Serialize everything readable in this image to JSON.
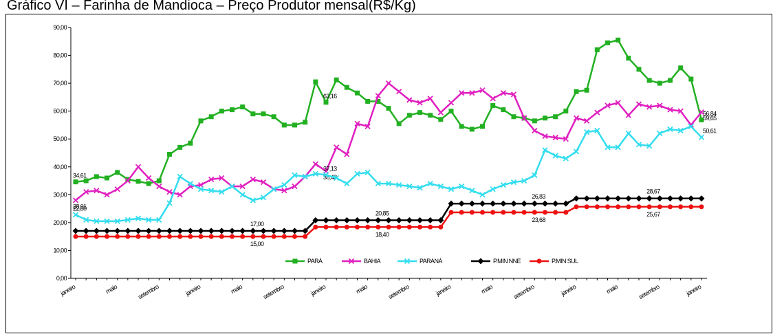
{
  "chart_data": {
    "type": "line",
    "title": "Gráfico VI – Farinha de Mandioca – Preço Produtor mensal(R$/Kg)",
    "categories": [
      "janeiro",
      null,
      null,
      null,
      "maio",
      null,
      null,
      null,
      "setembro",
      null,
      null,
      null,
      "janeiro",
      null,
      null,
      null,
      "maio",
      null,
      null,
      null,
      "setembro",
      null,
      null,
      null,
      "janeiro",
      null,
      null,
      null,
      "maio",
      null,
      null,
      null,
      "setembro",
      null,
      null,
      null,
      "janeiro",
      null,
      null,
      null,
      "maio",
      null,
      null,
      null,
      "setembro",
      null,
      null,
      null,
      "janeiro",
      null,
      null,
      null,
      "maio",
      null,
      null,
      null,
      "setembro",
      null,
      null,
      null,
      "janeiro"
    ],
    "ylim": [
      0,
      90
    ],
    "yticks": [
      {
        "value": 0,
        "label": "0,00"
      },
      {
        "value": 10,
        "label": "10,00"
      },
      {
        "value": 20,
        "label": "20,00"
      },
      {
        "value": 30,
        "label": "30,00"
      },
      {
        "value": 40,
        "label": "40,00"
      },
      {
        "value": 50,
        "label": "50,00"
      },
      {
        "value": 60,
        "label": "60,00"
      },
      {
        "value": 70,
        "label": "70,00"
      },
      {
        "value": 80,
        "label": "80,00"
      },
      {
        "value": 90,
        "label": "90,00"
      }
    ],
    "grid": false,
    "legend": "bottom",
    "series": [
      {
        "name": "PARÁ",
        "color": "#22b022",
        "marker": "square",
        "values": [
          34.61,
          35,
          36.5,
          36,
          38,
          35.5,
          34.8,
          34,
          35,
          44.5,
          47,
          48.5,
          56.5,
          58,
          60,
          60.5,
          61.5,
          59,
          59,
          58,
          55,
          55,
          56,
          70.5,
          63.16,
          71.2,
          68.5,
          66.5,
          63.5,
          63.5,
          61,
          55.5,
          58.5,
          59.5,
          58.5,
          57,
          60,
          54.5,
          53.5,
          54.5,
          62,
          60.5,
          58,
          57.5,
          56.5,
          57.5,
          58,
          60,
          67,
          67.5,
          82,
          84.5,
          85.5,
          79,
          75,
          71,
          70,
          71,
          75.5,
          71.5,
          56.84
        ],
        "value_labels": [
          "34,61",
          null,
          null,
          null,
          null,
          null,
          null,
          null,
          null,
          null,
          null,
          null,
          null,
          null,
          null,
          null,
          null,
          null,
          null,
          null,
          null,
          null,
          null,
          null,
          "63,16",
          null,
          null,
          null,
          null,
          null,
          null,
          null,
          null,
          null,
          null,
          null,
          null,
          null,
          null,
          null,
          null,
          null,
          null,
          null,
          null,
          null,
          null,
          null,
          null,
          null,
          null,
          null,
          null,
          null,
          null,
          null,
          null,
          null,
          null,
          null,
          "56,84"
        ]
      },
      {
        "name": "BAHIA",
        "color": "#e020c0",
        "marker": "x",
        "values": [
          28.01,
          31,
          31.5,
          30,
          32,
          35,
          40,
          36,
          33,
          31,
          30,
          33,
          33.5,
          35.5,
          36,
          33,
          33,
          35.5,
          34.5,
          32,
          31.5,
          33,
          36.5,
          41,
          38.48,
          47,
          44.5,
          55.5,
          54.5,
          65.5,
          70,
          67,
          64,
          63,
          64.5,
          59.5,
          63,
          66.5,
          66.5,
          67.5,
          64.5,
          66.5,
          66,
          57.5,
          53,
          51,
          50.5,
          50,
          57.5,
          56.5,
          59.5,
          62,
          63,
          58.5,
          62.5,
          61.5,
          62,
          60.5,
          60,
          55,
          59.65
        ],
        "value_labels": [
          "28,01",
          null,
          null,
          null,
          null,
          null,
          null,
          null,
          null,
          null,
          null,
          null,
          null,
          null,
          null,
          null,
          null,
          null,
          null,
          null,
          null,
          null,
          null,
          null,
          "38,48",
          null,
          null,
          null,
          null,
          null,
          null,
          null,
          null,
          null,
          null,
          null,
          null,
          null,
          null,
          null,
          null,
          null,
          null,
          null,
          null,
          null,
          null,
          null,
          null,
          null,
          null,
          null,
          null,
          null,
          null,
          null,
          null,
          null,
          null,
          null,
          "59,65"
        ]
      },
      {
        "name": "PARANÁ",
        "color": "#33ddee",
        "marker": "x",
        "values": [
          22.8,
          21,
          20.5,
          20.5,
          20.5,
          21,
          21.5,
          21,
          21,
          27,
          36.5,
          34,
          32,
          31.5,
          31,
          33,
          30,
          28,
          29,
          32,
          33.5,
          37,
          36.5,
          37.5,
          37.13,
          36,
          34,
          37.5,
          38,
          34,
          34,
          33.5,
          33,
          32.5,
          34,
          33,
          32,
          33,
          31.5,
          30,
          32,
          33.5,
          34.5,
          35,
          37,
          46,
          44,
          43,
          45.5,
          52.5,
          53,
          47,
          47,
          52,
          48,
          47.5,
          52,
          53.5,
          53,
          54.5,
          50.61
        ],
        "value_labels": [
          "22,80",
          null,
          null,
          null,
          null,
          null,
          null,
          null,
          null,
          null,
          null,
          null,
          null,
          null,
          null,
          null,
          null,
          null,
          null,
          null,
          null,
          null,
          null,
          null,
          "37,13",
          null,
          null,
          null,
          null,
          null,
          null,
          null,
          null,
          null,
          null,
          null,
          null,
          null,
          null,
          null,
          null,
          null,
          null,
          null,
          null,
          null,
          null,
          null,
          null,
          null,
          null,
          null,
          null,
          null,
          null,
          null,
          null,
          null,
          null,
          null,
          "50,61"
        ]
      },
      {
        "name": "P.MIN NNE",
        "color": "#000000",
        "marker": "diamond",
        "values": [
          17,
          17,
          17,
          17,
          17,
          17,
          17,
          17,
          17,
          17,
          17,
          17,
          17,
          17,
          17,
          17,
          17,
          17,
          17,
          17,
          17,
          17,
          17,
          20.85,
          20.85,
          20.85,
          20.85,
          20.85,
          20.85,
          20.85,
          20.85,
          20.85,
          20.85,
          20.85,
          20.85,
          20.85,
          26.83,
          26.83,
          26.83,
          26.83,
          26.83,
          26.83,
          26.83,
          26.83,
          26.83,
          26.83,
          26.83,
          26.83,
          28.67,
          28.67,
          28.67,
          28.67,
          28.67,
          28.67,
          28.67,
          28.67,
          28.67,
          28.67,
          28.67,
          28.67,
          28.67
        ],
        "value_labels": [
          null,
          null,
          null,
          null,
          null,
          null,
          null,
          null,
          null,
          null,
          null,
          null,
          null,
          null,
          null,
          null,
          null,
          "17,00",
          null,
          null,
          null,
          null,
          null,
          null,
          null,
          null,
          null,
          null,
          null,
          "20,85",
          null,
          null,
          null,
          null,
          null,
          null,
          null,
          null,
          null,
          null,
          null,
          null,
          null,
          null,
          "26,83",
          null,
          null,
          null,
          null,
          null,
          null,
          null,
          null,
          null,
          null,
          "28,67",
          null,
          null,
          null,
          null,
          null
        ]
      },
      {
        "name": "P.MIN SUL",
        "color": "#ee1111",
        "marker": "circle",
        "values": [
          15,
          15,
          15,
          15,
          15,
          15,
          15,
          15,
          15,
          15,
          15,
          15,
          15,
          15,
          15,
          15,
          15,
          15,
          15,
          15,
          15,
          15,
          15,
          18.4,
          18.4,
          18.4,
          18.4,
          18.4,
          18.4,
          18.4,
          18.4,
          18.4,
          18.4,
          18.4,
          18.4,
          18.4,
          23.68,
          23.68,
          23.68,
          23.68,
          23.68,
          23.68,
          23.68,
          23.68,
          23.68,
          23.68,
          23.68,
          23.68,
          25.67,
          25.67,
          25.67,
          25.67,
          25.67,
          25.67,
          25.67,
          25.67,
          25.67,
          25.67,
          25.67,
          25.67,
          25.67
        ],
        "value_labels": [
          null,
          null,
          null,
          null,
          null,
          null,
          null,
          null,
          null,
          null,
          null,
          null,
          null,
          null,
          null,
          null,
          null,
          "15,00",
          null,
          null,
          null,
          null,
          null,
          null,
          null,
          null,
          null,
          null,
          null,
          "18,40",
          null,
          null,
          null,
          null,
          null,
          null,
          null,
          null,
          null,
          null,
          null,
          null,
          null,
          null,
          "23,68",
          null,
          null,
          null,
          null,
          null,
          null,
          null,
          null,
          null,
          null,
          "25,67",
          null,
          null,
          null,
          null,
          null
        ]
      }
    ]
  }
}
